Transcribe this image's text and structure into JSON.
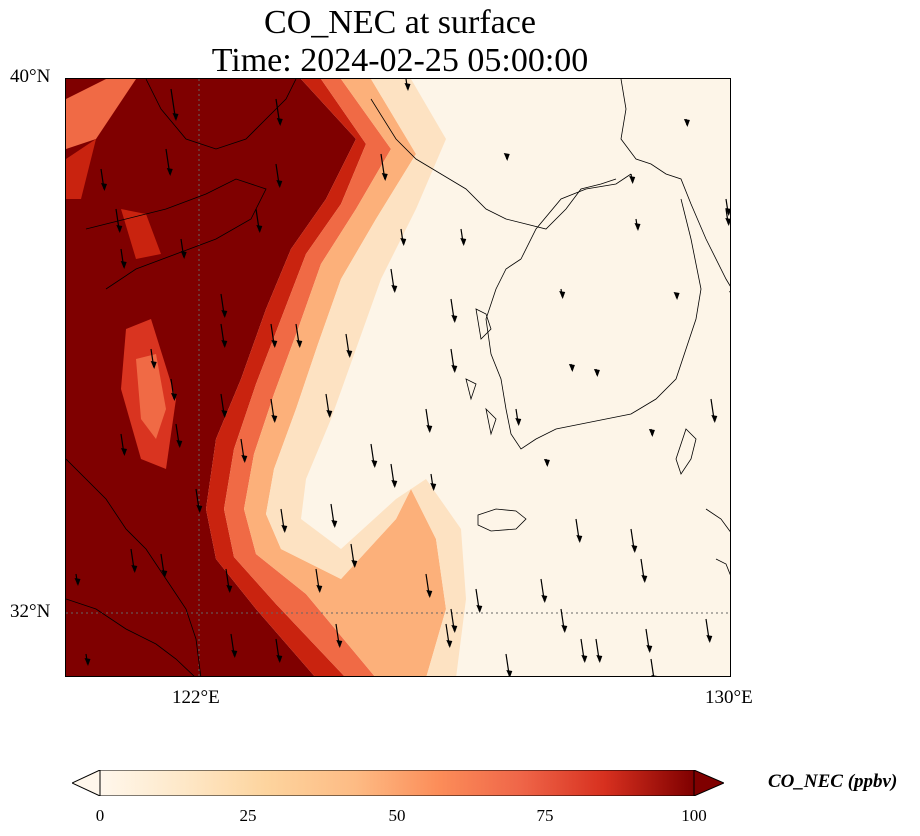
{
  "title": {
    "line1": "CO_NEC at surface",
    "line2": "Time: 2024-02-25 05:00:00"
  },
  "map": {
    "lat_labels": [
      "40°N",
      "32°N"
    ],
    "lon_labels": [
      "122°E",
      "130°E"
    ],
    "extent": {
      "lon_min": 120,
      "lon_max": 130,
      "lat_min": 31,
      "lat_max": 40
    },
    "gridlines": {
      "lon": [
        122
      ],
      "lat": [
        32
      ]
    },
    "features": [
      "coastline",
      "wind-vectors",
      "co-concentration-field"
    ]
  },
  "colorbar": {
    "label": "CO_NEC (ppbv)",
    "ticks": [
      "0",
      "25",
      "50",
      "75",
      "100"
    ],
    "range": [
      0,
      100
    ],
    "colormap": "OrRd",
    "extend": "both"
  },
  "colors": {
    "low": "#fff7ec",
    "mid": "#fdbb84",
    "high": "#7f0000"
  }
}
